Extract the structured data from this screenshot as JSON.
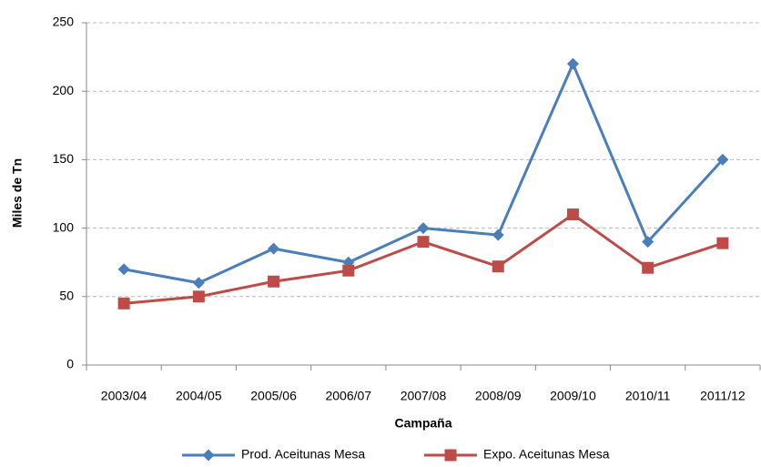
{
  "chart_data": {
    "type": "line",
    "x_label": "Campaña",
    "y_label": "Miles de Tn",
    "categories": [
      "2003/04",
      "2004/05",
      "2005/06",
      "2006/07",
      "2007/08",
      "2008/09",
      "2009/10",
      "2010/11",
      "2011/12"
    ],
    "series": [
      {
        "name": "Prod. Aceitunas Mesa",
        "color": "#4a7ebb",
        "marker": "diamond",
        "values": [
          70,
          60,
          85,
          75,
          100,
          95,
          220,
          90,
          150
        ]
      },
      {
        "name": "Expo. Aceitunas Mesa",
        "color": "#be4b48",
        "marker": "square",
        "values": [
          45,
          50,
          61,
          69,
          90,
          72,
          110,
          71,
          89
        ]
      }
    ],
    "ylim": [
      0,
      250
    ],
    "yticks": [
      0,
      50,
      100,
      150,
      200,
      250
    ],
    "grid": true,
    "legend": "bottom"
  }
}
